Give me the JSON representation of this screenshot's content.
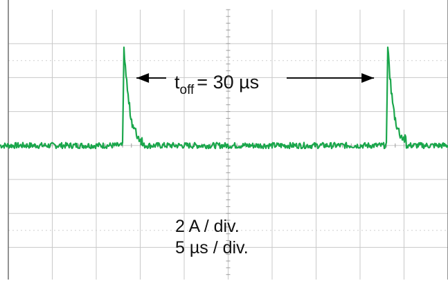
{
  "chart_data": {
    "type": "line",
    "trace_color": "#1aa64b",
    "grid": true,
    "grid_color": "#c8c8c8",
    "frame_color": "#6e6e6e",
    "annotation": {
      "t_label": "t",
      "t_subscript": "off",
      "t_value": "= 30 µs",
      "interval_us": 30
    },
    "scale": {
      "current": "2 A / div.",
      "time": "5 µs / div."
    },
    "series": [
      {
        "pulses_at_us": [
          -12,
          18
        ],
        "baseline_a": 0,
        "peak_a": 5.8,
        "secondary_peak_a": 3.7,
        "tail_a": 0.6
      }
    ]
  }
}
